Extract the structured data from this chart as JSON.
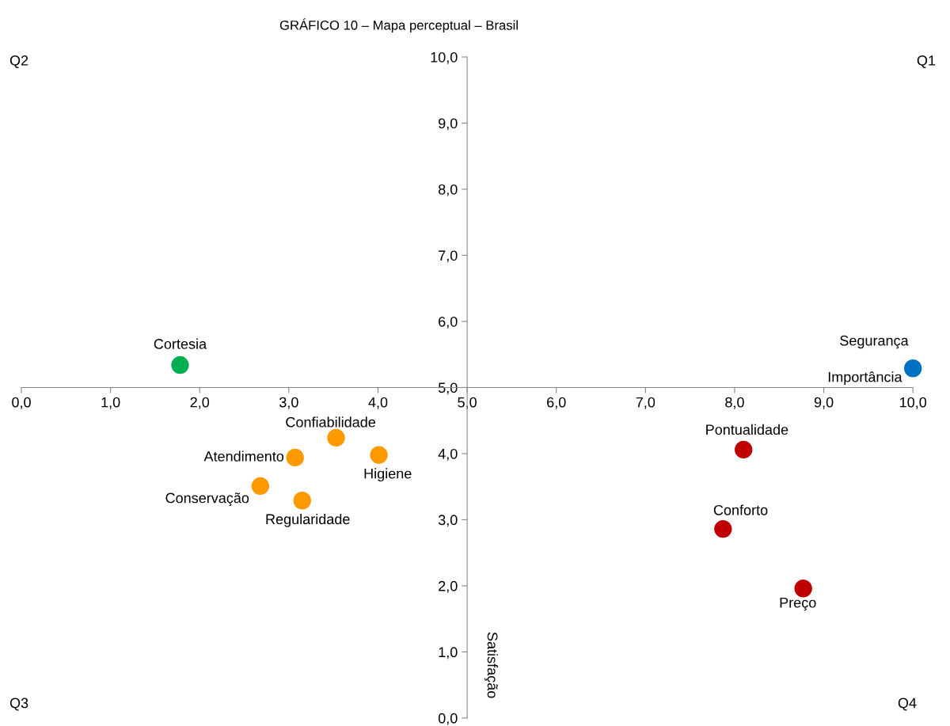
{
  "chart_data": {
    "type": "scatter",
    "title": "GRÁFICO 10 – Mapa perceptual – Brasil",
    "xlabel": "Importância",
    "ylabel": "Satisfação",
    "x": [
      1.78,
      10.0,
      3.53,
      3.07,
      4.01,
      2.68,
      3.15,
      8.1,
      7.87,
      8.77
    ],
    "values": [
      5.34,
      5.29,
      4.24,
      3.94,
      3.98,
      3.51,
      3.29,
      4.06,
      2.86,
      1.96
    ],
    "colors": [
      "#00b050",
      "#0070c0",
      "#ff9900",
      "#ff9900",
      "#ff9900",
      "#ff9900",
      "#ff9900",
      "#c00000",
      "#c00000",
      "#c00000"
    ],
    "marker": "circle",
    "grid": false,
    "xlim": [
      0,
      10
    ],
    "ylim": [
      0,
      10
    ],
    "xticks": [
      {
        "value": 0,
        "label": "0,0"
      },
      {
        "value": 1,
        "label": "1,0"
      },
      {
        "value": 2,
        "label": "2,0"
      },
      {
        "value": 3,
        "label": "3,0"
      },
      {
        "value": 4,
        "label": "4,0"
      },
      {
        "value": 5,
        "label": "5,0"
      },
      {
        "value": 6,
        "label": "6,0"
      },
      {
        "value": 7,
        "label": "7,0"
      },
      {
        "value": 8,
        "label": "8,0"
      },
      {
        "value": 9,
        "label": "9,0"
      },
      {
        "value": 10,
        "label": "10,0"
      }
    ],
    "yticks": [
      {
        "value": 0,
        "label": "0,0"
      },
      {
        "value": 1,
        "label": "1,0"
      },
      {
        "value": 2,
        "label": "2,0"
      },
      {
        "value": 3,
        "label": "3,0"
      },
      {
        "value": 4,
        "label": "4,0"
      },
      {
        "value": 5,
        "label": "5,0"
      },
      {
        "value": 6,
        "label": "6,0"
      },
      {
        "value": 7,
        "label": "7,0"
      },
      {
        "value": 8,
        "label": "8,0"
      },
      {
        "value": 9,
        "label": "9,0"
      },
      {
        "value": 10,
        "label": "10,0"
      }
    ],
    "annotations": [
      {
        "text": "Cortesia",
        "x": 1.78,
        "y": 5.34
      },
      {
        "text": "Segurança",
        "x": 10.0,
        "y": 5.29
      },
      {
        "text": "Confiabilidade",
        "x": 3.53,
        "y": 4.24
      },
      {
        "text": "Atendimento",
        "x": 3.07,
        "y": 3.94
      },
      {
        "text": "Higiene",
        "x": 4.01,
        "y": 3.98
      },
      {
        "text": "Conservação",
        "x": 2.68,
        "y": 3.51
      },
      {
        "text": "Regularidade",
        "x": 3.15,
        "y": 3.29
      },
      {
        "text": "Pontualidade",
        "x": 8.1,
        "y": 4.06
      },
      {
        "text": "Conforto",
        "x": 7.87,
        "y": 2.86
      },
      {
        "text": "Preço",
        "x": 8.77,
        "y": 1.96
      },
      "Q2",
      "Q1",
      "Q3",
      "Q4"
    ]
  }
}
